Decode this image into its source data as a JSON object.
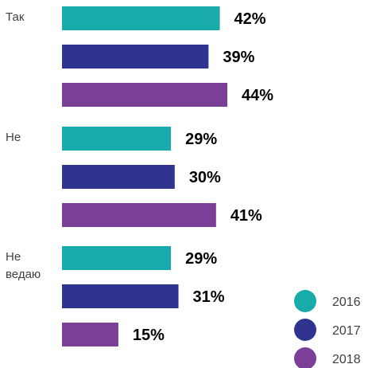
{
  "chart_data": {
    "type": "bar",
    "orientation": "horizontal",
    "categories": [
      [
        "Так"
      ],
      [
        "Не"
      ],
      [
        "Не",
        "ведаю"
      ]
    ],
    "series": [
      {
        "name": "2016",
        "color": "#19ABAB",
        "values": [
          42,
          29,
          29
        ]
      },
      {
        "name": "2017",
        "color": "#2E3490",
        "values": [
          39,
          30,
          31
        ]
      },
      {
        "name": "2018",
        "color": "#7B3F98",
        "values": [
          44,
          41,
          15
        ]
      }
    ],
    "value_suffix": "%",
    "legend_position": "bottom-right",
    "grid": false
  }
}
